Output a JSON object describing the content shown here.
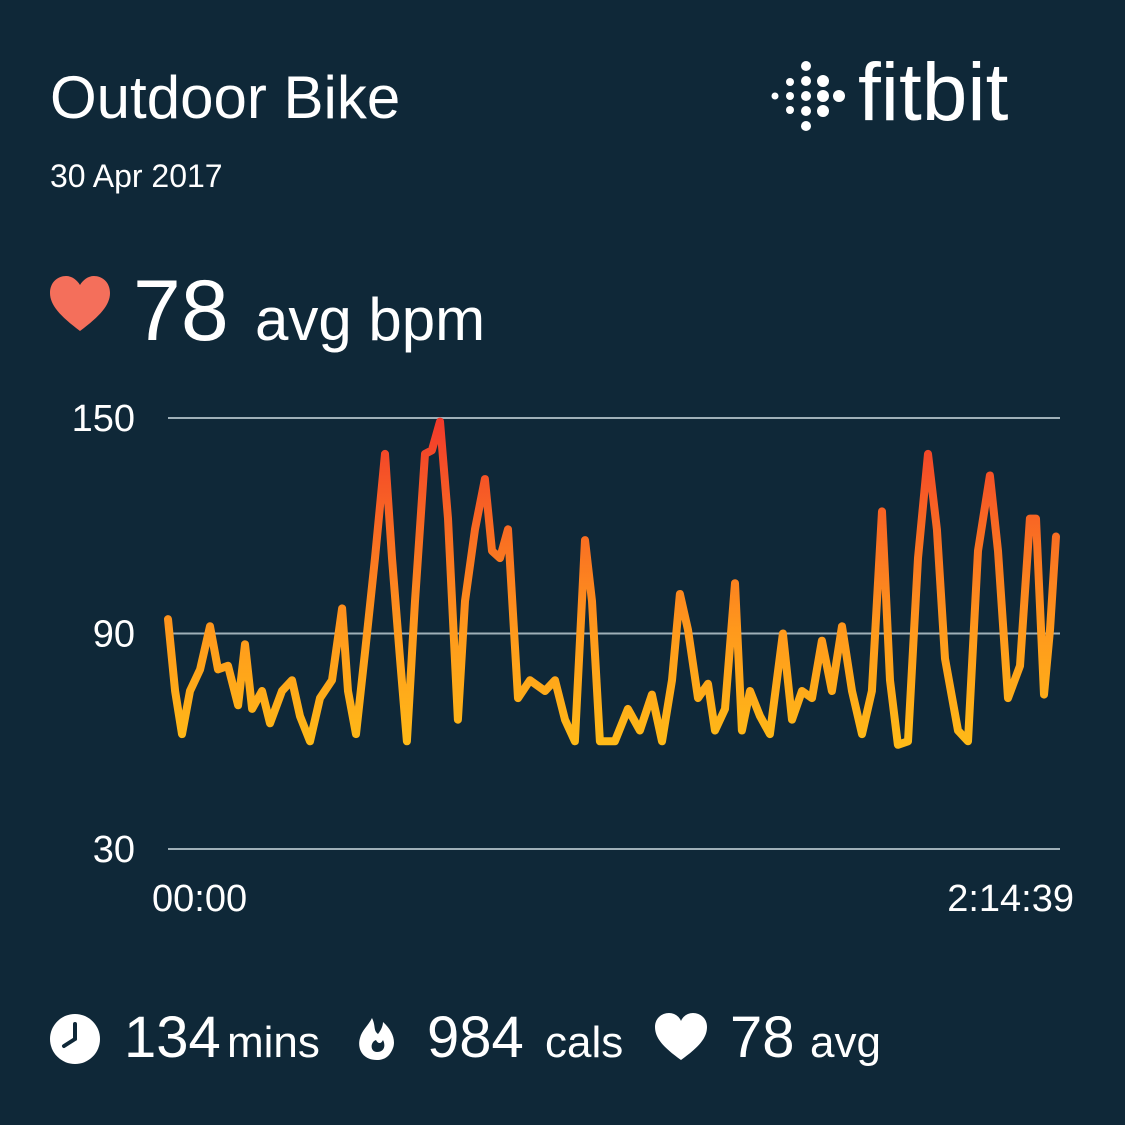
{
  "header": {
    "title": "Outdoor Bike",
    "date": "30 Apr 2017",
    "brand": "fitbit"
  },
  "summary": {
    "value": 78,
    "unit": "avg bpm"
  },
  "chart_data": {
    "type": "line",
    "x": [
      0,
      64,
      127,
      200,
      291,
      381,
      454,
      545,
      636,
      699,
      763,
      853,
      926,
      1035,
      1126,
      1198,
      1289,
      1380,
      1489,
      1580,
      1634,
      1707,
      1789,
      1879,
      1970,
      2033,
      2106,
      2169,
      2242,
      2333,
      2396,
      2469,
      2542,
      2632,
      2696,
      2787,
      2877,
      2941,
      3014,
      3086,
      3177,
      3286,
      3422,
      3513,
      3604,
      3694,
      3785,
      3849,
      3921,
      4057,
      4175,
      4284,
      4393,
      4484,
      4575,
      4647,
      4720,
      4811,
      4902,
      4965,
      5056,
      5147,
      5210,
      5283,
      5374,
      5464,
      5582,
      5664,
      5755,
      5846,
      5936,
      6027,
      6118,
      6209,
      6300,
      6390,
      6481,
      6554,
      6626,
      6717,
      6808,
      6899,
      6980,
      7053,
      7171,
      7262,
      7353,
      7461,
      7534,
      7625,
      7734,
      7824,
      7879,
      7952,
      8006,
      8061
    ],
    "series": [
      {
        "values": [
          94,
          74,
          62,
          74,
          80,
          92,
          80,
          81,
          70,
          87,
          69,
          74,
          65,
          74,
          77,
          67,
          60,
          72,
          77,
          97,
          74,
          62,
          85,
          111,
          140,
          111,
          83,
          60,
          99,
          140,
          141,
          149,
          122,
          66,
          99,
          119,
          133,
          113,
          111,
          119,
          72,
          77,
          74,
          77,
          66,
          60,
          116,
          99,
          60,
          60,
          69,
          63,
          73,
          60,
          77,
          101,
          91,
          72,
          76,
          63,
          69,
          104,
          63,
          74,
          67,
          62,
          90,
          66,
          74,
          72,
          88,
          74,
          92,
          74,
          62,
          74,
          124,
          77,
          59,
          60,
          111,
          140,
          119,
          83,
          63,
          60,
          113,
          134,
          113,
          72,
          81,
          122,
          122,
          73,
          91,
          117
        ]
      }
    ],
    "colors": [
      "#ffd814",
      "#ff9a1c",
      "#f2392b"
    ],
    "xlim": [
      0,
      8079
    ],
    "xticks": [
      {
        "value": 0,
        "label": "00:00"
      },
      {
        "value": 8079,
        "label": "2:14:39"
      }
    ],
    "ylim": [
      30,
      150
    ],
    "yticks": [
      30,
      90,
      150
    ],
    "grid": true
  },
  "stats": [
    {
      "value": 134,
      "unit": "mins"
    },
    {
      "value": 984,
      "unit": "cals"
    },
    {
      "value": 78,
      "unit": "avg"
    }
  ]
}
